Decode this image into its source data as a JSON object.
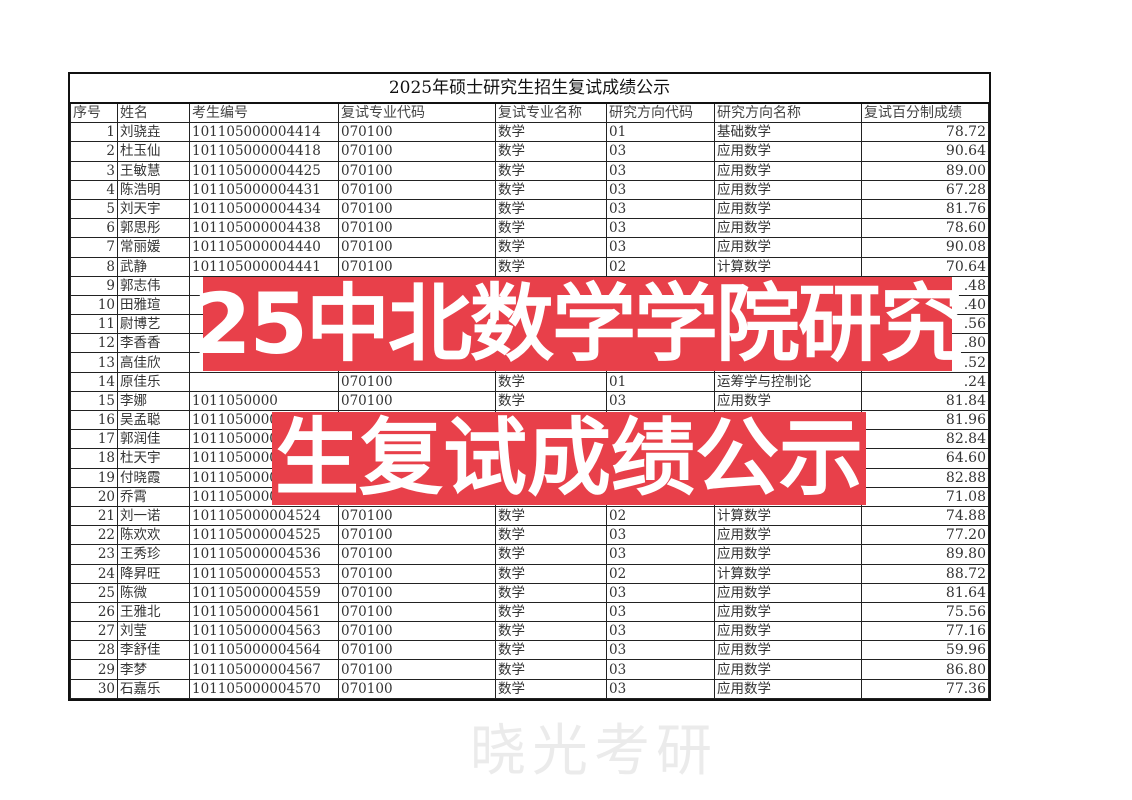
{
  "title": "2025年硕士研究生招生复试成绩公示",
  "columns": [
    "序号",
    "姓名",
    "考生编号",
    "复试专业代码",
    "复试专业名称",
    "研究方向代码",
    "研究方向名称",
    "复试百分制成绩"
  ],
  "rows": [
    [
      "1",
      "刘骁垚",
      "101105000004414",
      "070100",
      "数学",
      "01",
      "基础数学",
      "78.72"
    ],
    [
      "2",
      "杜玉仙",
      "101105000004418",
      "070100",
      "数学",
      "03",
      "应用数学",
      "90.64"
    ],
    [
      "3",
      "王敏慧",
      "101105000004425",
      "070100",
      "数学",
      "03",
      "应用数学",
      "89.00"
    ],
    [
      "4",
      "陈浩明",
      "101105000004431",
      "070100",
      "数学",
      "03",
      "应用数学",
      "67.28"
    ],
    [
      "5",
      "刘天宇",
      "101105000004434",
      "070100",
      "数学",
      "03",
      "应用数学",
      "81.76"
    ],
    [
      "6",
      "郭思彤",
      "101105000004438",
      "070100",
      "数学",
      "03",
      "应用数学",
      "78.60"
    ],
    [
      "7",
      "常丽媛",
      "101105000004440",
      "070100",
      "数学",
      "03",
      "应用数学",
      "90.08"
    ],
    [
      "8",
      "武静",
      "101105000004441",
      "070100",
      "数学",
      "02",
      "计算数学",
      "70.64"
    ],
    [
      "9",
      "郭志伟",
      "",
      "",
      "",
      "",
      "",
      ".48"
    ],
    [
      "10",
      "田雅瑄",
      "",
      "",
      "",
      "",
      "",
      ".40"
    ],
    [
      "11",
      "尉博艺",
      "",
      "",
      "",
      "",
      "",
      ".56"
    ],
    [
      "12",
      "李香香",
      "",
      "",
      "",
      "",
      "",
      ".80"
    ],
    [
      "13",
      "高佳欣",
      "",
      "",
      "",
      "",
      "",
      ".52"
    ],
    [
      "14",
      "原佳乐",
      "",
      "070100",
      "数学",
      "01",
      "运筹学与控制论",
      ".24"
    ],
    [
      "15",
      "李娜",
      "1011050000",
      "070100",
      "数学",
      "03",
      "应用数学",
      "81.84"
    ],
    [
      "16",
      "吴孟聪",
      "1011050000",
      "",
      "",
      "",
      "",
      "81.96"
    ],
    [
      "17",
      "郭润佳",
      "1011050000",
      "",
      "",
      "",
      "",
      "82.84"
    ],
    [
      "18",
      "杜天宇",
      "1011050000",
      "",
      "",
      "",
      "",
      "64.60"
    ],
    [
      "19",
      "付晓霞",
      "1011050000",
      "",
      "",
      "",
      "",
      "82.88"
    ],
    [
      "20",
      "乔霄",
      "1011050000",
      "",
      "",
      "",
      "",
      "71.08"
    ],
    [
      "21",
      "刘一诺",
      "101105000004524",
      "070100",
      "数学",
      "02",
      "计算数学",
      "74.88"
    ],
    [
      "22",
      "陈欢欢",
      "101105000004525",
      "070100",
      "数学",
      "03",
      "应用数学",
      "77.20"
    ],
    [
      "23",
      "王秀珍",
      "101105000004536",
      "070100",
      "数学",
      "03",
      "应用数学",
      "89.80"
    ],
    [
      "24",
      "降昇旺",
      "101105000004553",
      "070100",
      "数学",
      "02",
      "计算数学",
      "88.72"
    ],
    [
      "25",
      "陈微",
      "101105000004559",
      "070100",
      "数学",
      "03",
      "应用数学",
      "81.64"
    ],
    [
      "26",
      "王雅北",
      "101105000004561",
      "070100",
      "数学",
      "03",
      "应用数学",
      "75.56"
    ],
    [
      "27",
      "刘莹",
      "101105000004563",
      "070100",
      "数学",
      "03",
      "应用数学",
      "77.16"
    ],
    [
      "28",
      "李舒佳",
      "101105000004564",
      "070100",
      "数学",
      "03",
      "应用数学",
      "59.96"
    ],
    [
      "29",
      "李梦",
      "101105000004567",
      "070100",
      "数学",
      "03",
      "应用数学",
      "86.80"
    ],
    [
      "30",
      "石嘉乐",
      "101105000004570",
      "070100",
      "数学",
      "03",
      "应用数学",
      "77.36"
    ]
  ],
  "watermark": "晓光考研",
  "banner": {
    "line1": "25中北数学学院研究",
    "line2": "生复试成绩公示",
    "color": "#e8404a"
  }
}
